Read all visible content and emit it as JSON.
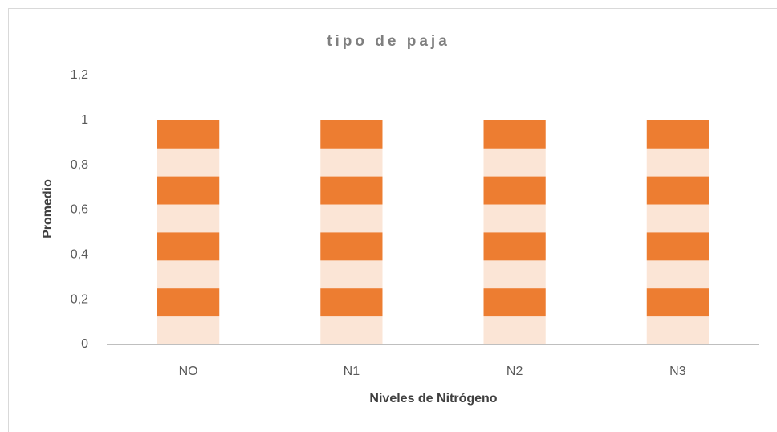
{
  "chart_data": {
    "type": "bar",
    "title": "tipo de paja",
    "x_label": "Niveles de Nitrógeno",
    "y_label": "Promedio",
    "categories": [
      "NO",
      "N1",
      "N2",
      "N3"
    ],
    "values": [
      1,
      1,
      1,
      1
    ],
    "color": "#ed7d31",
    "ylim": [
      0,
      1.2
    ],
    "yticks": [
      0,
      {
        "value": 0.2,
        "label": "0,2"
      },
      {
        "value": 0.4,
        "label": "0,4"
      },
      {
        "value": 0.6,
        "label": "0,6"
      },
      {
        "value": 0.8,
        "label": "0,8"
      },
      1,
      {
        "value": 1.2,
        "label": "1,2"
      }
    ],
    "grid": false
  }
}
